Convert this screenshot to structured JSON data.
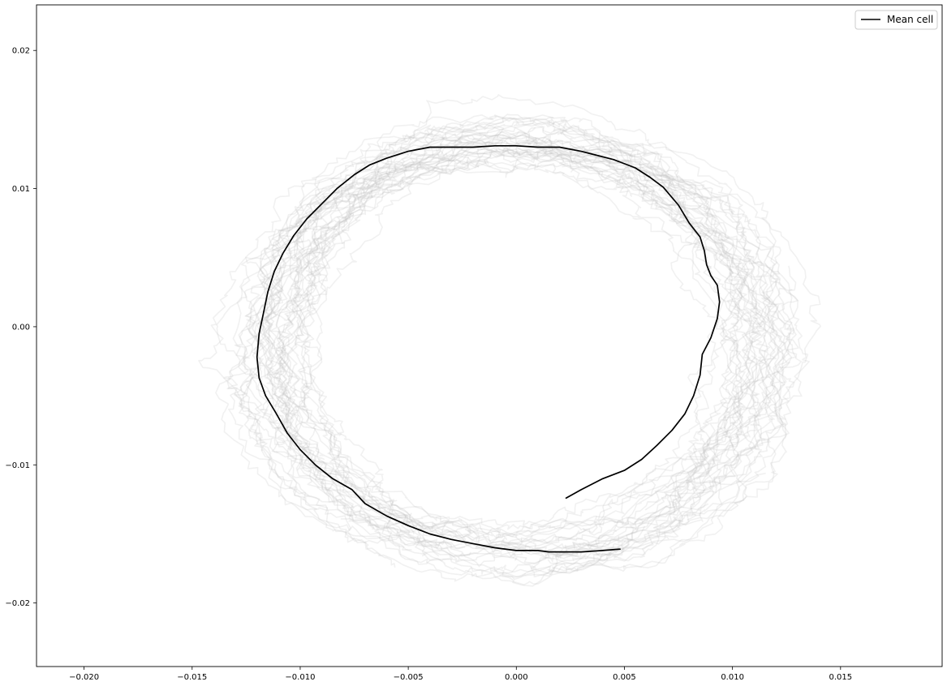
{
  "chart_data": {
    "type": "line",
    "title": "",
    "xlabel": "",
    "ylabel": "",
    "xlim": [
      -0.0222,
      0.0197
    ],
    "ylim": [
      -0.0246,
      0.0233
    ],
    "xticks": [
      -0.02,
      -0.015,
      -0.01,
      -0.005,
      0.0,
      0.005,
      0.01,
      0.015
    ],
    "xtick_labels": [
      "−0.020",
      "−0.015",
      "−0.010",
      "−0.005",
      "0.000",
      "0.005",
      "0.010",
      "0.015"
    ],
    "yticks": [
      0.02,
      0.01,
      0.0,
      -0.01,
      -0.02
    ],
    "ytick_labels": [
      "0.02",
      "0.01",
      "0.00",
      "−0.01",
      "−0.02"
    ],
    "grid": false,
    "legend": {
      "location": "upper right",
      "entries": [
        "Mean cell"
      ]
    },
    "series": [
      {
        "name": "Mean cell",
        "color": "#000000",
        "x": [
          0.0048,
          0.004,
          0.003,
          0.0025,
          0.002,
          0.0015,
          0.001,
          0.0005,
          0.0,
          -0.001,
          -0.002,
          -0.003,
          -0.004,
          -0.005,
          -0.006,
          -0.007,
          -0.0076,
          -0.0085,
          -0.0093,
          -0.01,
          -0.0106,
          -0.0111,
          -0.0116,
          -0.0119,
          -0.012,
          -0.0119,
          -0.0117,
          -0.0115,
          -0.0112,
          -0.0108,
          -0.0103,
          -0.0097,
          -0.009,
          -0.0083,
          -0.0075,
          -0.0068,
          -0.006,
          -0.005,
          -0.004,
          -0.003,
          -0.002,
          -0.001,
          0.0,
          0.001,
          0.002,
          0.003,
          0.0035,
          0.0045,
          0.0055,
          0.0062,
          0.0068,
          0.0075,
          0.008,
          0.0085,
          0.0087,
          0.0088,
          0.009,
          0.0093,
          0.0094,
          0.0093,
          0.009,
          0.0086,
          0.0085,
          0.0082,
          0.0078,
          0.0072,
          0.0065,
          0.0058,
          0.005,
          0.004,
          0.003,
          0.0023
        ],
        "y": [
          -0.0161,
          -0.0162,
          -0.0163,
          -0.0163,
          -0.0163,
          -0.0163,
          -0.0162,
          -0.0162,
          -0.0162,
          -0.016,
          -0.0157,
          -0.0154,
          -0.015,
          -0.0144,
          -0.0137,
          -0.0128,
          -0.0118,
          -0.011,
          -0.01,
          -0.0089,
          -0.0077,
          -0.0063,
          -0.005,
          -0.0037,
          -0.0022,
          -0.0005,
          0.001,
          0.0025,
          0.004,
          0.0053,
          0.0066,
          0.0078,
          0.0089,
          0.01,
          0.011,
          0.0117,
          0.0122,
          0.0127,
          0.013,
          0.013,
          0.013,
          0.0131,
          0.0131,
          0.013,
          0.013,
          0.0127,
          0.0125,
          0.0121,
          0.0115,
          0.0108,
          0.0101,
          0.0088,
          0.0075,
          0.0065,
          0.0055,
          0.0045,
          0.0037,
          0.003,
          0.0018,
          0.0006,
          -0.0008,
          -0.002,
          -0.0035,
          -0.005,
          -0.0063,
          -0.0075,
          -0.0086,
          -0.0096,
          -0.0104,
          -0.011,
          -0.0118,
          -0.0124
        ]
      }
    ],
    "background_traces": {
      "count": 40,
      "color": "#bdbdbd",
      "opacity": 0.22
    }
  }
}
